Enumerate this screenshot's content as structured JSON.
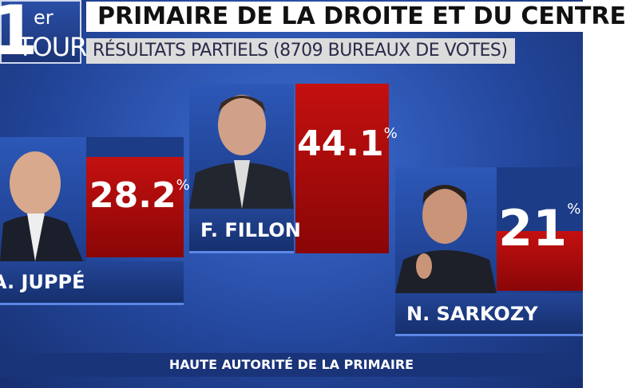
{
  "header": {
    "round_number": "1",
    "round_suffix": "er",
    "round_label": "TOUR",
    "title": "PRIMAIRE DE LA DROITE ET DU CENTRE",
    "subtitle": "RÉSULTATS PARTIELS (8709 BUREAUX DE VOTES)"
  },
  "unit": "%",
  "candidates": [
    {
      "name": "A. JUPPÉ",
      "value": 28.2
    },
    {
      "name": "F. FILLON",
      "value": 44.1
    },
    {
      "name": "N. SARKOZY",
      "value": 21
    }
  ],
  "footer": "HAUTE AUTORITÉ DE LA PRIMAIRE"
}
